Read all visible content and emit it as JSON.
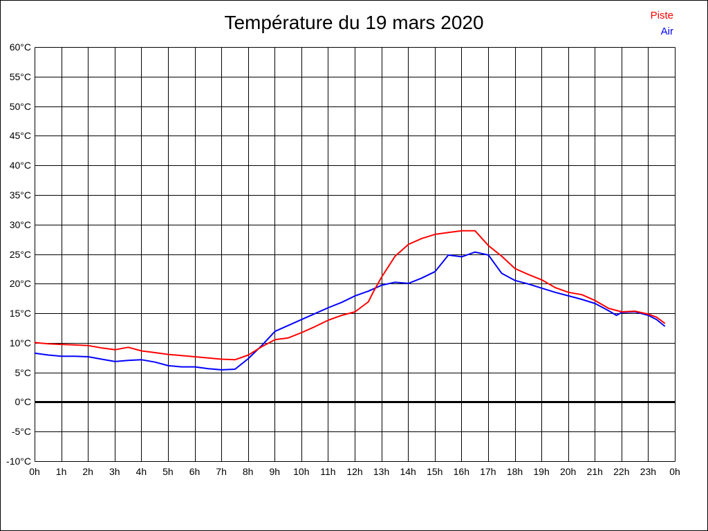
{
  "header": {
    "title": "Température du 19 mars 2020"
  },
  "legend": {
    "items": [
      {
        "label": "Piste",
        "color": "#ff0000"
      },
      {
        "label": "Air",
        "color": "#0000ff"
      }
    ]
  },
  "chart_data": {
    "type": "line",
    "title": "Température du 19 mars 2020",
    "xlabel": "",
    "ylabel": "",
    "x_unit": "hour of day",
    "y_unit": "°C",
    "xlim": [
      0,
      24
    ],
    "ylim": [
      -10,
      60
    ],
    "grid": true,
    "grid_color": "#000000",
    "zero_line": {
      "value": 0,
      "color": "#000000",
      "width": 3
    },
    "legend_position": "top-right",
    "x_tick_values": [
      0,
      1,
      2,
      3,
      4,
      5,
      6,
      7,
      8,
      9,
      10,
      11,
      12,
      13,
      14,
      15,
      16,
      17,
      18,
      19,
      20,
      21,
      22,
      23,
      24
    ],
    "x_tick_labels": [
      "0h",
      "1h",
      "2h",
      "3h",
      "4h",
      "5h",
      "6h",
      "7h",
      "8h",
      "9h",
      "10h",
      "11h",
      "12h",
      "13h",
      "14h",
      "15h",
      "16h",
      "17h",
      "18h",
      "19h",
      "20h",
      "21h",
      "22h",
      "23h",
      "0h"
    ],
    "y_tick_values": [
      60,
      55,
      50,
      45,
      40,
      35,
      30,
      25,
      20,
      15,
      10,
      5,
      0,
      -5,
      -10
    ],
    "y_tick_labels": [
      "60°C",
      "55°C",
      "50°C",
      "45°C",
      "40°C",
      "35°C",
      "30°C",
      "25°C",
      "20°C",
      "15°C",
      "10°C",
      "5°C",
      "0°C",
      "-5°C",
      "-10°C"
    ],
    "series": [
      {
        "name": "Piste",
        "color": "#ff0000",
        "width": 2,
        "points": [
          [
            0,
            10.1
          ],
          [
            0.5,
            9.9
          ],
          [
            1,
            9.8
          ],
          [
            1.5,
            9.7
          ],
          [
            2,
            9.6
          ],
          [
            2.5,
            9.2
          ],
          [
            3,
            8.9
          ],
          [
            3.5,
            9.3
          ],
          [
            4,
            8.7
          ],
          [
            4.5,
            8.4
          ],
          [
            5,
            8.1
          ],
          [
            5.5,
            7.9
          ],
          [
            6,
            7.7
          ],
          [
            6.5,
            7.5
          ],
          [
            7,
            7.3
          ],
          [
            7.5,
            7.2
          ],
          [
            8,
            8.0
          ],
          [
            8.5,
            9.4
          ],
          [
            9,
            10.6
          ],
          [
            9.5,
            10.9
          ],
          [
            10,
            11.8
          ],
          [
            10.5,
            12.8
          ],
          [
            11,
            13.9
          ],
          [
            11.5,
            14.7
          ],
          [
            12,
            15.3
          ],
          [
            12.5,
            17.0
          ],
          [
            12.7,
            18.8
          ],
          [
            13,
            21.2
          ],
          [
            13.5,
            24.7
          ],
          [
            14,
            26.7
          ],
          [
            14.5,
            27.7
          ],
          [
            15,
            28.4
          ],
          [
            15.5,
            28.7
          ],
          [
            16,
            29.0
          ],
          [
            16.5,
            29.0
          ],
          [
            17,
            26.5
          ],
          [
            17.5,
            24.7
          ],
          [
            18,
            22.6
          ],
          [
            18.5,
            21.6
          ],
          [
            19,
            20.7
          ],
          [
            19.5,
            19.4
          ],
          [
            20,
            18.6
          ],
          [
            20.5,
            18.2
          ],
          [
            21,
            17.2
          ],
          [
            21.5,
            15.9
          ],
          [
            22,
            15.3
          ],
          [
            22.5,
            15.4
          ],
          [
            23,
            14.9
          ],
          [
            23.3,
            14.4
          ],
          [
            23.6,
            13.4
          ]
        ]
      },
      {
        "name": "Air",
        "color": "#0000ff",
        "width": 2,
        "points": [
          [
            0,
            8.3
          ],
          [
            0.5,
            8.0
          ],
          [
            1,
            7.8
          ],
          [
            1.5,
            7.8
          ],
          [
            2,
            7.7
          ],
          [
            2.5,
            7.3
          ],
          [
            3,
            6.9
          ],
          [
            3.5,
            7.1
          ],
          [
            4,
            7.2
          ],
          [
            4.5,
            6.8
          ],
          [
            5,
            6.2
          ],
          [
            5.5,
            6.0
          ],
          [
            6,
            6.0
          ],
          [
            6.5,
            5.7
          ],
          [
            7,
            5.5
          ],
          [
            7.5,
            5.6
          ],
          [
            8,
            7.4
          ],
          [
            8.5,
            9.6
          ],
          [
            9,
            12.0
          ],
          [
            9.5,
            13.0
          ],
          [
            10,
            14.0
          ],
          [
            10.5,
            15.0
          ],
          [
            11,
            16.0
          ],
          [
            11.5,
            16.9
          ],
          [
            12,
            18.0
          ],
          [
            12.5,
            18.8
          ],
          [
            13,
            19.8
          ],
          [
            13.5,
            20.3
          ],
          [
            14,
            20.1
          ],
          [
            14.5,
            21.0
          ],
          [
            15,
            22.1
          ],
          [
            15.5,
            24.9
          ],
          [
            16,
            24.6
          ],
          [
            16.5,
            25.4
          ],
          [
            17,
            24.9
          ],
          [
            17.5,
            21.8
          ],
          [
            18,
            20.6
          ],
          [
            18.5,
            20.0
          ],
          [
            19,
            19.3
          ],
          [
            19.5,
            18.6
          ],
          [
            20,
            18.0
          ],
          [
            20.5,
            17.4
          ],
          [
            21,
            16.7
          ],
          [
            21.5,
            15.5
          ],
          [
            21.8,
            14.7
          ],
          [
            22,
            15.2
          ],
          [
            22.5,
            15.3
          ],
          [
            23,
            14.7
          ],
          [
            23.3,
            14.0
          ],
          [
            23.6,
            12.9
          ]
        ]
      }
    ]
  }
}
